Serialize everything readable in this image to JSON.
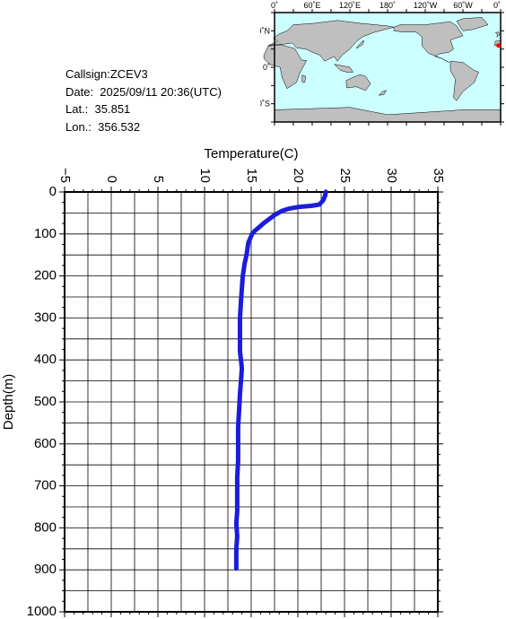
{
  "info": {
    "callsign": "Callsign:ZCEV3",
    "date": "Date:  2025/09/11 20:36(UTC)",
    "lat": "Lat.:  35.851",
    "lon": "Lon.:  356.532"
  },
  "map": {
    "lon_labels": [
      "0˚",
      "60˚E",
      "120˚E",
      "180˚",
      "120˚W",
      "60˚W",
      "0˚"
    ],
    "lat_labels": [
      "60˚N",
      "0˚",
      "60˚S"
    ],
    "ocean_color": "#ccffff",
    "land_color": "#bfbfbf",
    "marker_color": "#ff0000",
    "marker": {
      "lon": 356.532,
      "lat": 35.851
    }
  },
  "chart_data": {
    "type": "line",
    "title": "",
    "xlabel": "Temperature(C)",
    "ylabel": "Depth(m)",
    "xlim": [
      -5,
      35
    ],
    "ylim": [
      0,
      1000
    ],
    "y_inverted": true,
    "grid": true,
    "x_ticks": [
      -5,
      0,
      5,
      10,
      15,
      20,
      25,
      30,
      35
    ],
    "y_ticks": [
      0,
      100,
      200,
      300,
      400,
      500,
      600,
      700,
      800,
      900,
      1000
    ],
    "line_color": "#1c1cdc",
    "series": [
      {
        "x": [
          23.0,
          22.9,
          22.7,
          22.3,
          21.5,
          20.0,
          19.0,
          18.3,
          17.5,
          16.9,
          16.3,
          15.8,
          15.4,
          15.1,
          14.9,
          14.7,
          14.6,
          14.5,
          14.3,
          14.1,
          14.0,
          13.9,
          13.8,
          13.8,
          13.8,
          13.8,
          13.9,
          14.0,
          13.9,
          13.8,
          13.7,
          13.6,
          13.6,
          13.6,
          13.5,
          13.5,
          13.5,
          13.4,
          13.5,
          13.4,
          13.4,
          13.4
        ],
        "y": [
          0,
          10,
          20,
          30,
          33,
          36,
          40,
          45,
          55,
          65,
          75,
          85,
          92,
          100,
          110,
          120,
          135,
          150,
          170,
          200,
          230,
          260,
          300,
          330,
          360,
          380,
          400,
          420,
          450,
          480,
          520,
          560,
          600,
          640,
          680,
          720,
          760,
          790,
          820,
          850,
          880,
          897
        ]
      }
    ]
  }
}
